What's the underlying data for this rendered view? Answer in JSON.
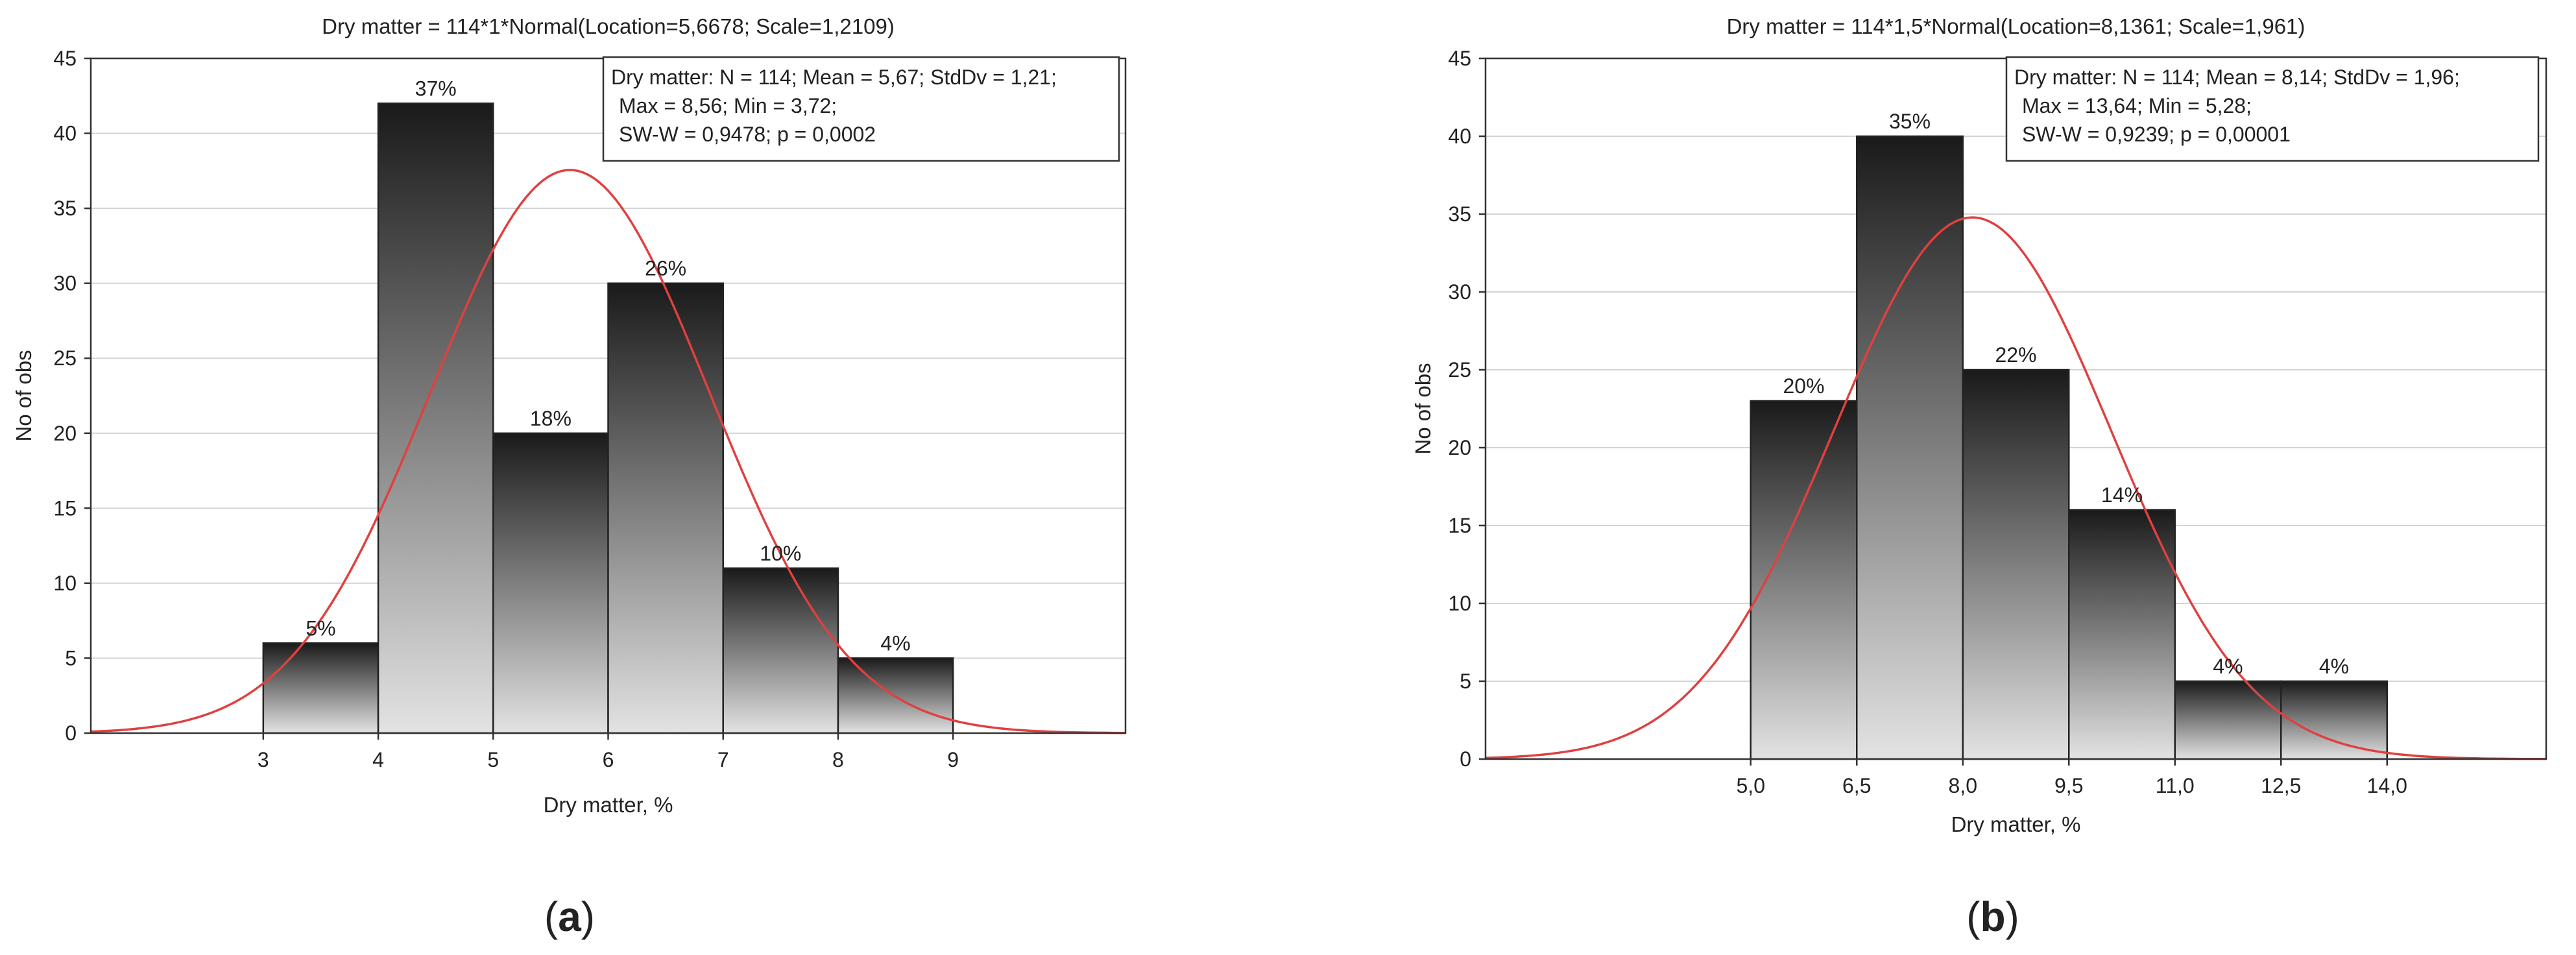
{
  "chart_data": [
    {
      "type": "bar",
      "panel_label": "a",
      "title": "Dry matter = 114*1*Normal(Location=5,6678; Scale=1,2109)",
      "xlabel": "Dry matter, %",
      "ylabel": "No of obs",
      "x_ticks": [
        "3",
        "4",
        "5",
        "6",
        "7",
        "8",
        "9"
      ],
      "y_ticks": [
        "0",
        "5",
        "10",
        "15",
        "20",
        "25",
        "30",
        "35",
        "40",
        "45"
      ],
      "xlim": [
        1.5,
        10.5
      ],
      "ylim": [
        0,
        45
      ],
      "bin_edges": [
        3,
        4,
        5,
        6,
        7,
        8,
        9
      ],
      "values": [
        6,
        42,
        20,
        30,
        11,
        5
      ],
      "bar_labels": [
        "5%",
        "37%",
        "18%",
        "26%",
        "10%",
        "4%"
      ],
      "fit": {
        "location": 5.6678,
        "scale": 1.2109,
        "n": 114,
        "bin_width": 1,
        "color": "#e04040"
      },
      "stats_box": [
        "Dry matter: N = 114; Mean = 5,67; StdDv = 1,21;",
        "Max = 8,56; Min = 3,72;",
        "SW-W = 0,9478; p = 0,0002"
      ],
      "legend": "top-right",
      "grid": true
    },
    {
      "type": "bar",
      "panel_label": "b",
      "title": "Dry matter = 114*1,5*Normal(Location=8,1361; Scale=1,961)",
      "xlabel": "Dry matter, %",
      "ylabel": "No of obs",
      "x_ticks": [
        "5,0",
        "6,5",
        "8,0",
        "9,5",
        "11,0",
        "12,5",
        "14,0"
      ],
      "y_ticks": [
        "0",
        "5",
        "10",
        "15",
        "20",
        "25",
        "30",
        "35",
        "40",
        "45"
      ],
      "xlim": [
        1.25,
        16.25
      ],
      "ylim": [
        0,
        45
      ],
      "bin_edges": [
        5.0,
        6.5,
        8.0,
        9.5,
        11.0,
        12.5,
        14.0
      ],
      "values": [
        23,
        40,
        25,
        16,
        5,
        5
      ],
      "bar_labels": [
        "20%",
        "35%",
        "22%",
        "14%",
        "4%",
        "4%"
      ],
      "fit": {
        "location": 8.1361,
        "scale": 1.961,
        "n": 114,
        "bin_width": 1.5,
        "color": "#e04040"
      },
      "stats_box": [
        "Dry matter: N = 114; Mean = 8,14; StdDv = 1,96;",
        "Max = 13,64; Min = 5,28;",
        "SW-W = 0,9239; p = 0,00001"
      ],
      "legend": "top-right",
      "grid": true
    }
  ]
}
